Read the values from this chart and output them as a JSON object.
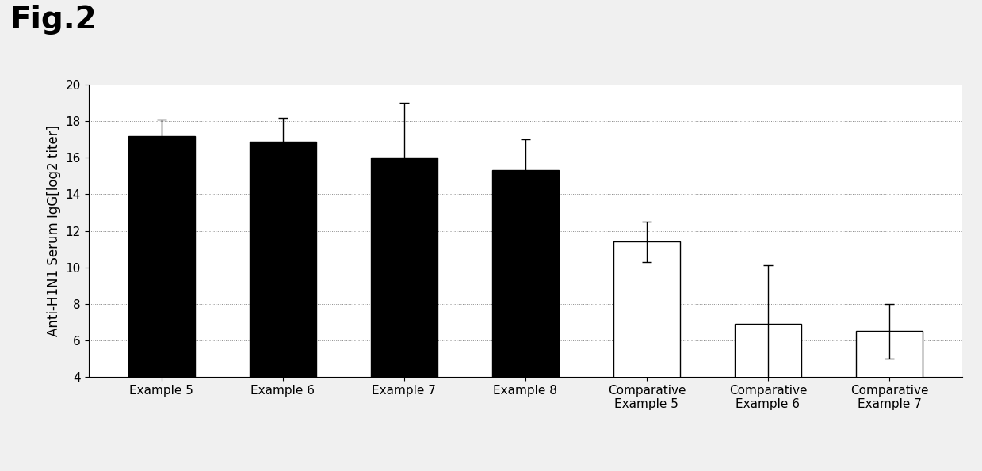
{
  "title": "Fig.2",
  "ylabel": "Anti-H1N1 Serum IgG[log2 titer]",
  "ylim": [
    4,
    20
  ],
  "yticks": [
    4,
    6,
    8,
    10,
    12,
    14,
    16,
    18,
    20
  ],
  "categories": [
    "Example 5",
    "Example 6",
    "Example 7",
    "Example 8",
    "Comparative\nExample 5",
    "Comparative\nExample 6",
    "Comparative\nExample 7"
  ],
  "values": [
    17.2,
    16.9,
    16.0,
    15.3,
    11.4,
    6.9,
    6.5
  ],
  "errors": [
    0.9,
    1.3,
    3.0,
    1.7,
    1.1,
    3.2,
    1.5
  ],
  "bar_colors": [
    "#000000",
    "#000000",
    "#000000",
    "#000000",
    "#ffffff",
    "#ffffff",
    "#ffffff"
  ],
  "bar_edgecolors": [
    "#000000",
    "#000000",
    "#000000",
    "#000000",
    "#000000",
    "#000000",
    "#000000"
  ],
  "bar_width": 0.55,
  "background_color": "#f0f0f0",
  "plot_bg_color": "#ffffff",
  "grid_color": "#888888",
  "title_fontsize": 28,
  "label_fontsize": 12,
  "tick_fontsize": 11
}
